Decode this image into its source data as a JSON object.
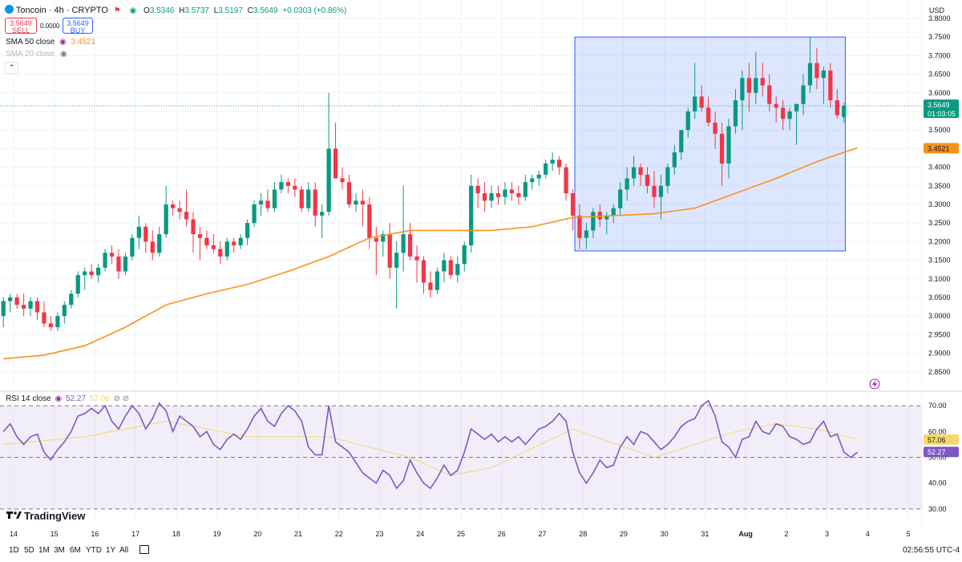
{
  "header": {
    "symbol": "Toncoin · 4h · CRYPTO",
    "open_label": "O",
    "open": "3.5346",
    "high_label": "H",
    "high": "3.5737",
    "low_label": "L",
    "low": "3.5197",
    "close_label": "C",
    "close": "3.5649",
    "change": "+0.0303 (+0.86%)",
    "sell_price": "3.5649",
    "sell_label": "SELL",
    "spread": "0.0000",
    "buy_price": "3.5649",
    "buy_label": "BUY",
    "currency": "USD"
  },
  "indicators": {
    "sma50_label": "SMA 50 close",
    "sma50_value": "3.4521",
    "sma20_label": "SMA 20 close",
    "rsi_label": "RSI 14 close",
    "rsi_value": "52.27",
    "rsi_ma_value": "57.06"
  },
  "price_tags": {
    "last": "3.5649",
    "countdown": "01:03:05",
    "sma": "3.4521",
    "rsi": "52.27",
    "rsi_ma": "57.06"
  },
  "bottom_bar": {
    "timeframes": [
      "1D",
      "5D",
      "1M",
      "3M",
      "6M",
      "YTD",
      "1Y",
      "All"
    ],
    "clock": "02:56:55 UTC-4",
    "logo": "TradingView"
  },
  "colors": {
    "up": "#089981",
    "down": "#f23645",
    "sma": "#f7931a",
    "rsi": "#7e57c2",
    "rsi_ma": "#f5d86b",
    "box": "#2962ff"
  },
  "chart_data": [
    {
      "type": "candlestick",
      "title": "Toncoin · 4h · CRYPTO",
      "ylabel": "USD",
      "ylim": [
        2.8,
        3.8
      ],
      "y_ticks": [
        "3.8000",
        "3.7500",
        "3.7000",
        "3.6500",
        "3.6000",
        "3.5500",
        "3.5000",
        "3.4500",
        "3.4000",
        "3.3500",
        "3.3000",
        "3.2500",
        "3.2000",
        "3.1500",
        "3.1000",
        "3.0500",
        "3.0000",
        "2.9500",
        "2.9000",
        "2.8500"
      ],
      "x_ticks": [
        "14",
        "15",
        "16",
        "17",
        "18",
        "19",
        "20",
        "21",
        "22",
        "23",
        "24",
        "25",
        "26",
        "27",
        "28",
        "29",
        "30",
        "31",
        "Aug",
        "2",
        "3",
        "4",
        "5"
      ],
      "x_tick_bars": [
        1.5,
        7.5,
        13.5,
        19.5,
        25.5,
        31.5,
        37.5,
        43.5,
        49.5,
        55.5,
        61.5,
        67.5,
        73.5,
        79.5,
        85.5,
        91.5,
        97.5,
        103.5,
        109.5,
        115.5,
        121.5,
        127.5,
        133.5
      ],
      "ohlc": [
        [
          3.0,
          3.05,
          2.97,
          3.04
        ],
        [
          3.04,
          3.06,
          3.01,
          3.05
        ],
        [
          3.05,
          3.06,
          3.02,
          3.03
        ],
        [
          3.03,
          3.06,
          3.0,
          3.02
        ],
        [
          3.02,
          3.05,
          3.0,
          3.04
        ],
        [
          3.04,
          3.05,
          2.99,
          3.01
        ],
        [
          3.01,
          3.04,
          2.97,
          2.98
        ],
        [
          2.98,
          3.0,
          2.96,
          2.97
        ],
        [
          2.97,
          3.01,
          2.96,
          3.0
        ],
        [
          3.0,
          3.04,
          2.98,
          3.03
        ],
        [
          3.03,
          3.07,
          3.02,
          3.06
        ],
        [
          3.06,
          3.12,
          3.05,
          3.11
        ],
        [
          3.11,
          3.13,
          3.07,
          3.12
        ],
        [
          3.12,
          3.14,
          3.1,
          3.11
        ],
        [
          3.11,
          3.14,
          3.09,
          3.13
        ],
        [
          3.13,
          3.18,
          3.12,
          3.17
        ],
        [
          3.17,
          3.19,
          3.14,
          3.16
        ],
        [
          3.16,
          3.18,
          3.1,
          3.12
        ],
        [
          3.12,
          3.17,
          3.11,
          3.16
        ],
        [
          3.16,
          3.22,
          3.15,
          3.21
        ],
        [
          3.21,
          3.27,
          3.18,
          3.24
        ],
        [
          3.24,
          3.25,
          3.17,
          3.2
        ],
        [
          3.2,
          3.23,
          3.15,
          3.17
        ],
        [
          3.17,
          3.24,
          3.16,
          3.22
        ],
        [
          3.22,
          3.35,
          3.21,
          3.3
        ],
        [
          3.3,
          3.31,
          3.27,
          3.29
        ],
        [
          3.29,
          3.31,
          3.26,
          3.28
        ],
        [
          3.28,
          3.34,
          3.24,
          3.26
        ],
        [
          3.26,
          3.28,
          3.17,
          3.22
        ],
        [
          3.22,
          3.24,
          3.15,
          3.21
        ],
        [
          3.21,
          3.23,
          3.18,
          3.19
        ],
        [
          3.19,
          3.22,
          3.17,
          3.18
        ],
        [
          3.18,
          3.2,
          3.14,
          3.16
        ],
        [
          3.16,
          3.21,
          3.15,
          3.2
        ],
        [
          3.2,
          3.21,
          3.17,
          3.19
        ],
        [
          3.19,
          3.22,
          3.18,
          3.21
        ],
        [
          3.21,
          3.26,
          3.19,
          3.25
        ],
        [
          3.25,
          3.31,
          3.24,
          3.3
        ],
        [
          3.3,
          3.33,
          3.27,
          3.31
        ],
        [
          3.31,
          3.34,
          3.28,
          3.29
        ],
        [
          3.29,
          3.36,
          3.28,
          3.34
        ],
        [
          3.34,
          3.38,
          3.33,
          3.36
        ],
        [
          3.36,
          3.37,
          3.33,
          3.35
        ],
        [
          3.35,
          3.37,
          3.32,
          3.34
        ],
        [
          3.34,
          3.35,
          3.28,
          3.29
        ],
        [
          3.29,
          3.36,
          3.28,
          3.34
        ],
        [
          3.34,
          3.36,
          3.24,
          3.27
        ],
        [
          3.27,
          3.3,
          3.21,
          3.28
        ],
        [
          3.28,
          3.6,
          3.27,
          3.45
        ],
        [
          3.45,
          3.52,
          3.38,
          3.37
        ],
        [
          3.37,
          3.4,
          3.34,
          3.36
        ],
        [
          3.36,
          3.38,
          3.29,
          3.3
        ],
        [
          3.3,
          3.33,
          3.28,
          3.31
        ],
        [
          3.31,
          3.34,
          3.24,
          3.3
        ],
        [
          3.3,
          3.32,
          3.18,
          3.21
        ],
        [
          3.21,
          3.24,
          3.11,
          3.2
        ],
        [
          3.2,
          3.23,
          3.16,
          3.22
        ],
        [
          3.22,
          3.25,
          3.1,
          3.13
        ],
        [
          3.13,
          3.2,
          3.02,
          3.17
        ],
        [
          3.17,
          3.35,
          3.12,
          3.22
        ],
        [
          3.22,
          3.25,
          3.15,
          3.16
        ],
        [
          3.16,
          3.19,
          3.09,
          3.15
        ],
        [
          3.15,
          3.16,
          3.06,
          3.09
        ],
        [
          3.09,
          3.12,
          3.05,
          3.07
        ],
        [
          3.07,
          3.13,
          3.06,
          3.12
        ],
        [
          3.12,
          3.17,
          3.09,
          3.15
        ],
        [
          3.15,
          3.16,
          3.1,
          3.11
        ],
        [
          3.11,
          3.16,
          3.09,
          3.14
        ],
        [
          3.14,
          3.2,
          3.12,
          3.19
        ],
        [
          3.19,
          3.38,
          3.17,
          3.35
        ],
        [
          3.35,
          3.37,
          3.29,
          3.33
        ],
        [
          3.33,
          3.36,
          3.28,
          3.31
        ],
        [
          3.31,
          3.35,
          3.29,
          3.33
        ],
        [
          3.33,
          3.35,
          3.3,
          3.32
        ],
        [
          3.32,
          3.36,
          3.3,
          3.34
        ],
        [
          3.34,
          3.36,
          3.31,
          3.33
        ],
        [
          3.33,
          3.35,
          3.3,
          3.32
        ],
        [
          3.32,
          3.38,
          3.31,
          3.36
        ],
        [
          3.36,
          3.38,
          3.34,
          3.37
        ],
        [
          3.37,
          3.39,
          3.35,
          3.38
        ],
        [
          3.38,
          3.42,
          3.37,
          3.41
        ],
        [
          3.41,
          3.44,
          3.39,
          3.42
        ],
        [
          3.42,
          3.43,
          3.38,
          3.4
        ],
        [
          3.4,
          3.41,
          3.31,
          3.33
        ],
        [
          3.33,
          3.34,
          3.23,
          3.27
        ],
        [
          3.27,
          3.3,
          3.18,
          3.21
        ],
        [
          3.21,
          3.25,
          3.18,
          3.23
        ],
        [
          3.23,
          3.29,
          3.21,
          3.28
        ],
        [
          3.28,
          3.3,
          3.24,
          3.26
        ],
        [
          3.26,
          3.28,
          3.22,
          3.27
        ],
        [
          3.27,
          3.3,
          3.25,
          3.29
        ],
        [
          3.29,
          3.36,
          3.27,
          3.34
        ],
        [
          3.34,
          3.4,
          3.31,
          3.37
        ],
        [
          3.37,
          3.43,
          3.35,
          3.4
        ],
        [
          3.4,
          3.41,
          3.35,
          3.38
        ],
        [
          3.38,
          3.4,
          3.33,
          3.35
        ],
        [
          3.35,
          3.39,
          3.29,
          3.32
        ],
        [
          3.32,
          3.38,
          3.26,
          3.35
        ],
        [
          3.35,
          3.41,
          3.33,
          3.4
        ],
        [
          3.4,
          3.46,
          3.38,
          3.44
        ],
        [
          3.44,
          3.5,
          3.42,
          3.5
        ],
        [
          3.5,
          3.56,
          3.48,
          3.55
        ],
        [
          3.55,
          3.68,
          3.53,
          3.59
        ],
        [
          3.59,
          3.62,
          3.55,
          3.56
        ],
        [
          3.56,
          3.59,
          3.51,
          3.52
        ],
        [
          3.52,
          3.55,
          3.45,
          3.49
        ],
        [
          3.49,
          3.52,
          3.35,
          3.41
        ],
        [
          3.41,
          3.53,
          3.37,
          3.51
        ],
        [
          3.51,
          3.61,
          3.49,
          3.58
        ],
        [
          3.58,
          3.66,
          3.5,
          3.64
        ],
        [
          3.64,
          3.68,
          3.55,
          3.6
        ],
        [
          3.6,
          3.71,
          3.57,
          3.64
        ],
        [
          3.64,
          3.68,
          3.59,
          3.62
        ],
        [
          3.62,
          3.65,
          3.55,
          3.57
        ],
        [
          3.57,
          3.59,
          3.52,
          3.56
        ],
        [
          3.56,
          3.58,
          3.5,
          3.53
        ],
        [
          3.53,
          3.56,
          3.5,
          3.55
        ],
        [
          3.55,
          3.57,
          3.46,
          3.57
        ],
        [
          3.57,
          3.65,
          3.54,
          3.62
        ],
        [
          3.62,
          3.75,
          3.6,
          3.68
        ],
        [
          3.68,
          3.72,
          3.61,
          3.64
        ],
        [
          3.64,
          3.67,
          3.57,
          3.66
        ],
        [
          3.66,
          3.68,
          3.56,
          3.58
        ],
        [
          3.58,
          3.61,
          3.53,
          3.54
        ],
        [
          3.5346,
          3.5737,
          3.5197,
          3.5649
        ]
      ],
      "sma50": [
        [
          0,
          2.885
        ],
        [
          6,
          2.895
        ],
        [
          12,
          2.92
        ],
        [
          18,
          2.97
        ],
        [
          24,
          3.03
        ],
        [
          30,
          3.06
        ],
        [
          36,
          3.085
        ],
        [
          42,
          3.12
        ],
        [
          48,
          3.16
        ],
        [
          54,
          3.21
        ],
        [
          60,
          3.23
        ],
        [
          66,
          3.23
        ],
        [
          72,
          3.23
        ],
        [
          78,
          3.24
        ],
        [
          84,
          3.265
        ],
        [
          90,
          3.27
        ],
        [
          96,
          3.275
        ],
        [
          102,
          3.29
        ],
        [
          108,
          3.33
        ],
        [
          114,
          3.37
        ],
        [
          120,
          3.415
        ],
        [
          124,
          3.44
        ],
        [
          126,
          3.4521
        ]
      ],
      "highlight_box": {
        "x_range": [
          84.3,
          124.2
        ],
        "y_range": [
          3.175,
          3.75
        ]
      },
      "last_price": 3.5649
    },
    {
      "type": "line",
      "title": "RSI 14 close",
      "ylim": [
        25,
        75
      ],
      "y_ticks": [
        "70.00",
        "60.00",
        "50.00",
        "40.00",
        "30.00"
      ],
      "levels": [
        70,
        50,
        30
      ],
      "series": [
        {
          "name": "RSI",
          "values": [
            60,
            63,
            58,
            55,
            58,
            59,
            52,
            49,
            53,
            56,
            60,
            66,
            67,
            69,
            67,
            70,
            64,
            61,
            66,
            70,
            67,
            61,
            65,
            71,
            68,
            60,
            66,
            64,
            62,
            58,
            60,
            55,
            53,
            57,
            59,
            57,
            61,
            66,
            69,
            64,
            62,
            67,
            70,
            68,
            64,
            54,
            51,
            51,
            70,
            56,
            54,
            52,
            48,
            44,
            42,
            40,
            45,
            43,
            38,
            41,
            49,
            44,
            40,
            38,
            42,
            47,
            43,
            45,
            52,
            61,
            59,
            57,
            59,
            56,
            58,
            56,
            58,
            55,
            58,
            61,
            62,
            64,
            67,
            64,
            52,
            44,
            40,
            44,
            49,
            46,
            47,
            54,
            58,
            55,
            60,
            59,
            56,
            53,
            55,
            58,
            62,
            64,
            65,
            70,
            72,
            66,
            56,
            54,
            50,
            57,
            58,
            64,
            60,
            59,
            63,
            62,
            58,
            57,
            55,
            56,
            61,
            64,
            58,
            59,
            52,
            50,
            52
          ],
          "color": "#7e57c2"
        },
        {
          "name": "RSI MA",
          "values": [
            [
              0,
              55
            ],
            [
              12,
              58
            ],
            [
              24,
              64
            ],
            [
              36,
              58
            ],
            [
              48,
              58
            ],
            [
              60,
              50
            ],
            [
              66,
              43
            ],
            [
              72,
              46
            ],
            [
              84,
              61
            ],
            [
              96,
              50
            ],
            [
              108,
              60
            ],
            [
              114,
              63
            ],
            [
              120,
              61
            ],
            [
              126,
              57.06
            ]
          ],
          "color": "#f5d86b"
        }
      ],
      "last_rsi": 52.27,
      "last_ma": 57.06
    }
  ]
}
